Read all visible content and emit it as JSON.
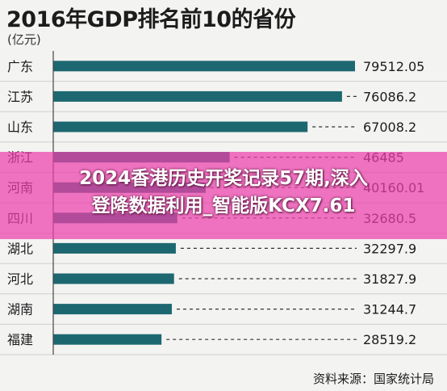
{
  "chart_data": {
    "type": "bar",
    "orientation": "horizontal",
    "title": "2016年GDP排名前10的省份",
    "unit": "(亿元)",
    "categories": [
      "广东",
      "江苏",
      "山东",
      "浙江",
      "河南",
      "四川",
      "湖北",
      "河北",
      "湖南",
      "福建"
    ],
    "values": [
      79512.05,
      76086.2,
      67008.2,
      46485,
      40160.01,
      32680.5,
      32297.9,
      31827.9,
      31244.7,
      28519.2
    ],
    "value_labels": [
      "79512.05",
      "76086.2",
      "67008.2",
      "46485",
      "40160.01",
      "32680.5",
      "32297.9",
      "31827.9",
      "31244.7",
      "28519.2"
    ],
    "xlim": [
      0,
      79512.05
    ],
    "bar_color": "#1d6870",
    "source": "资料来源：国家统计局"
  },
  "overlay": {
    "line1": "2024香港历史开奖记录57期,深入",
    "line2": "登降数据利用_智能版KCX7.61"
  }
}
